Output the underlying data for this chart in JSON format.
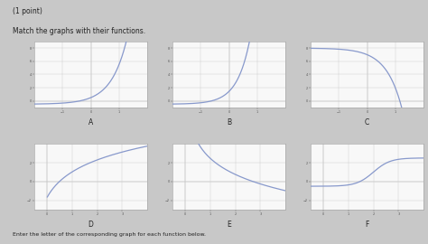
{
  "title_text": "(1 point)",
  "subtitle_text": "Match the graphs with their functions.",
  "footer_text": "Enter the letter of the corresponding graph for each function below.",
  "graphs": [
    {
      "label": "A",
      "type": "A"
    },
    {
      "label": "B",
      "type": "B"
    },
    {
      "label": "C",
      "type": "C"
    },
    {
      "label": "D",
      "type": "D"
    },
    {
      "label": "E",
      "type": "E"
    },
    {
      "label": "F",
      "type": "F"
    }
  ],
  "curve_color": "#8899cc",
  "grid_color": "#cccccc",
  "bg_color": "#f8f8f8",
  "outer_bg": "#c8c8c8",
  "text_color": "#222222",
  "border_color": "#aaaaaa"
}
